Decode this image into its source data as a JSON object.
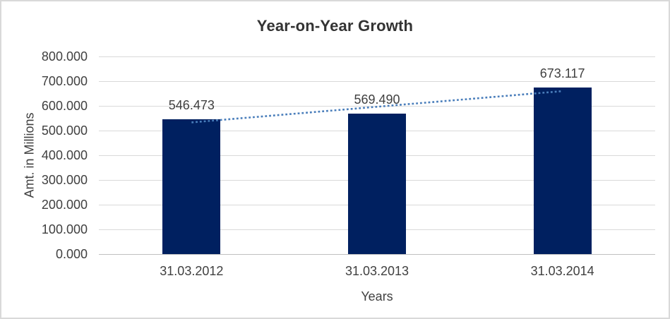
{
  "window": {
    "background": "#ffffff",
    "border_color": "#d9d9d9"
  },
  "chart_data": {
    "type": "bar",
    "title": "Year-on-Year Growth",
    "xlabel": "Years",
    "ylabel": "Amt. in Millions",
    "categories": [
      "31.03.2012",
      "31.03.2013",
      "31.03.2014"
    ],
    "values": [
      546.473,
      569.49,
      673.117
    ],
    "data_labels": [
      "546.473",
      "569.490",
      "673.117"
    ],
    "y_ticks": [
      "800.000",
      "700.000",
      "600.000",
      "500.000",
      "400.000",
      "300.000",
      "200.000",
      "100.000",
      "0.000"
    ],
    "ylim": [
      0,
      800
    ],
    "grid": true,
    "legend": false,
    "trendline": {
      "type": "linear",
      "style": "dotted",
      "fitted_values": [
        533.04,
        596.36,
        659.68
      ]
    },
    "colors": {
      "bar": "#002060",
      "trendline": "#4a7ebb",
      "gridline": "#d9d9d9",
      "axis_line": "#bfbfbf",
      "label_text": "#404040",
      "title_text": "#333333"
    }
  }
}
